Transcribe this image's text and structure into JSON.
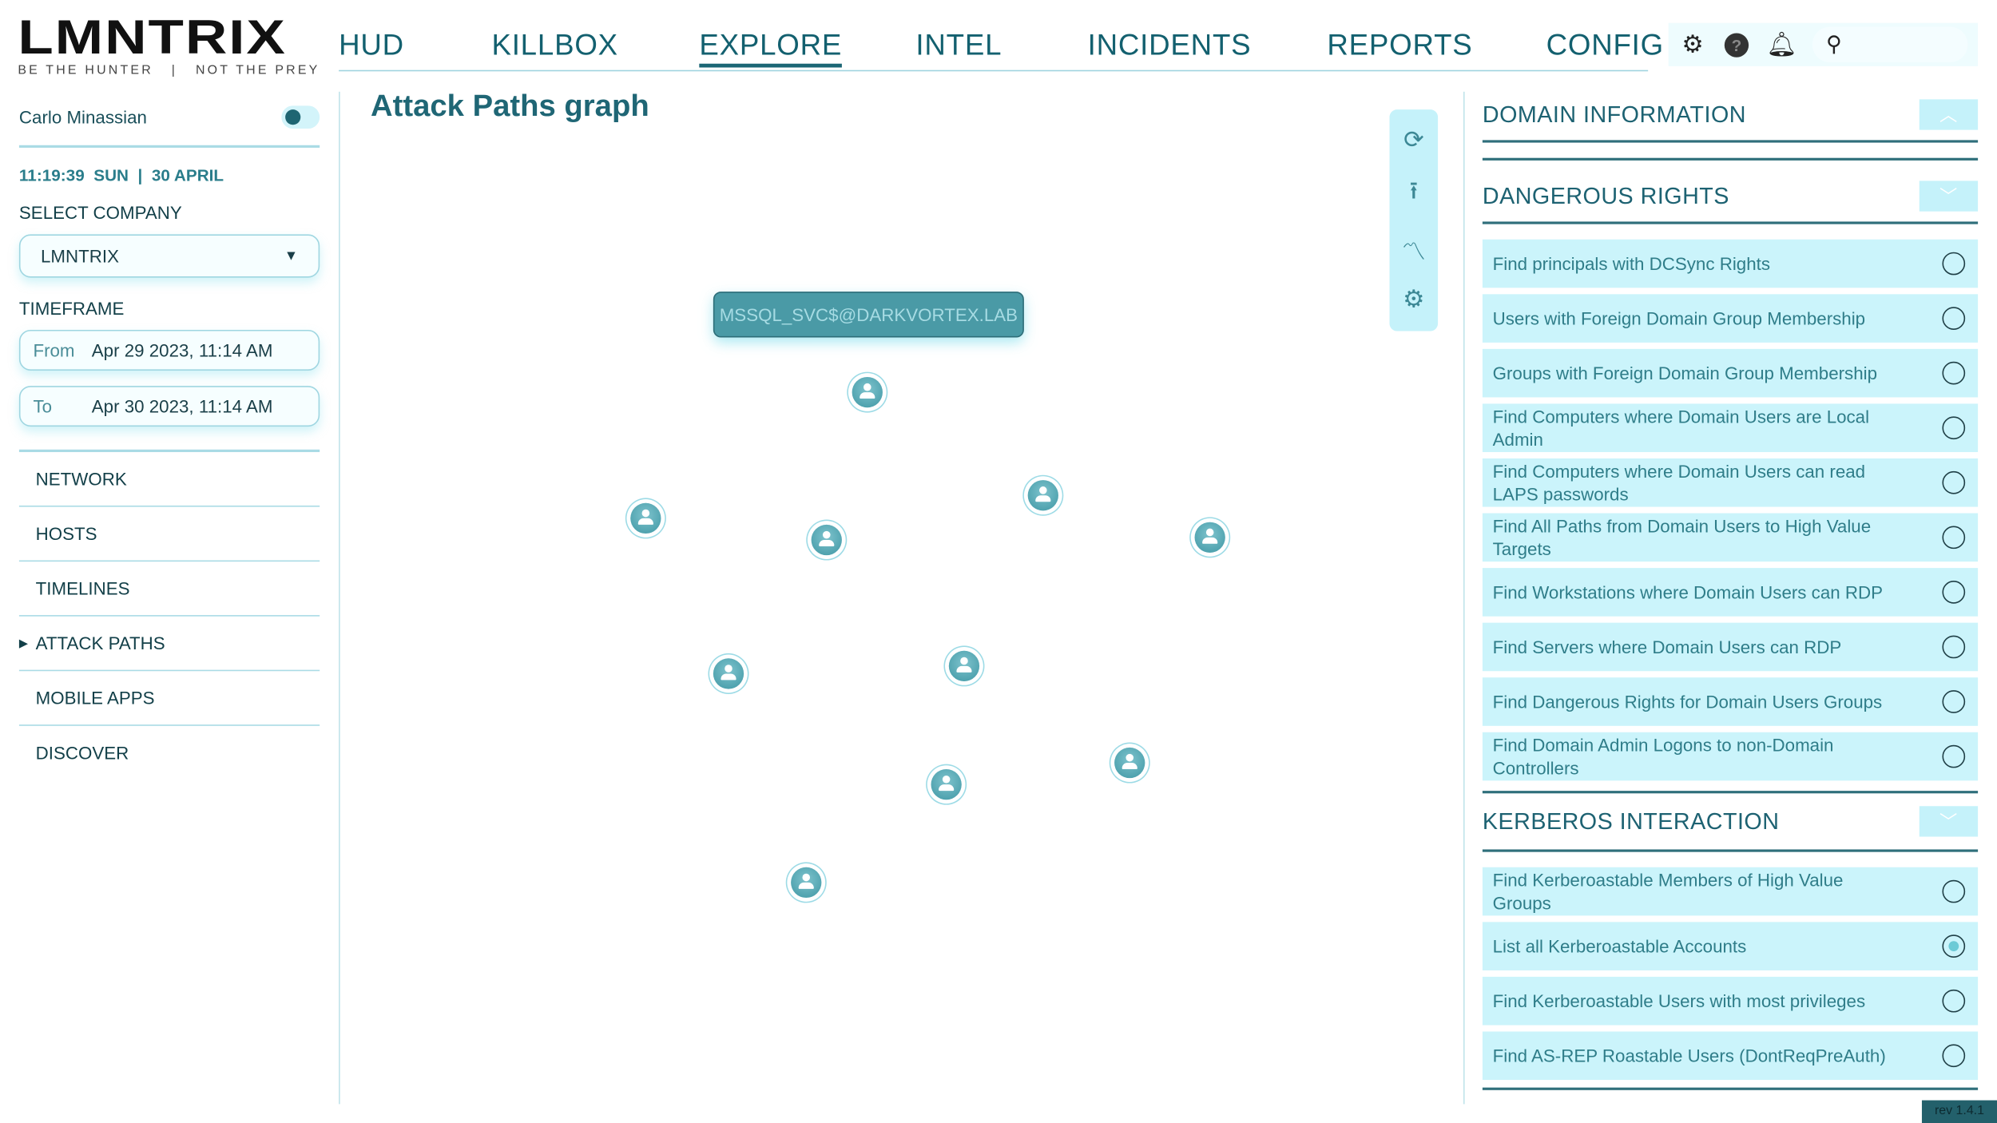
{
  "brand": {
    "name": "LMNTRIX",
    "tagline": "BE THE HUNTER   |   NOT THE PREY"
  },
  "nav": {
    "items": [
      "HUD",
      "KILLBOX",
      "EXPLORE",
      "INTEL",
      "INCIDENTS",
      "REPORTS",
      "CONFIG"
    ],
    "active": "EXPLORE"
  },
  "toolbar": {
    "icons": [
      "settings-icon",
      "help-icon",
      "bell-icon",
      "search-icon"
    ],
    "help_glyph": "?"
  },
  "sidebar": {
    "user": "Carlo Minassian",
    "clock": "11:19:39  SUN  |  30 APRIL",
    "select_company_label": "SELECT COMPANY",
    "company": "LMNTRIX",
    "timeframe_label": "TIMEFRAME",
    "from_label": "From",
    "from_value": "Apr 29 2023, 11:14 AM",
    "to_label": "To",
    "to_value": "Apr 30 2023, 11:14 AM",
    "menu": [
      "NETWORK",
      "HOSTS",
      "TIMELINES",
      "ATTACK PATHS",
      "MOBILE APPS",
      "DISCOVER"
    ],
    "active_menu": "ATTACK PATHS"
  },
  "main": {
    "title": "Attack Paths graph",
    "node_label": "MSSQL_SVC$@DARKVORTEX.LAB",
    "node_count": 10
  },
  "right": {
    "domain_info": "DOMAIN INFORMATION",
    "dangerous_rights": {
      "title": "DANGEROUS RIGHTS",
      "items": [
        "Find principals with DCSync Rights",
        "Users with Foreign Domain Group Membership",
        "Groups with Foreign Domain Group Membership",
        "Find Computers where Domain Users are Local Admin",
        "Find Computers where Domain Users can read LAPS passwords",
        "Find All Paths from Domain Users to High Value Targets",
        "Find Workstations where Domain Users can RDP",
        "Find Servers where Domain Users can RDP",
        "Find Dangerous Rights for Domain Users Groups",
        "Find Domain Admin Logons to non-Domain Controllers"
      ]
    },
    "kerberos": {
      "title": "KERBEROS INTERACTION",
      "items": [
        "Find Kerberoastable Members of High Value Groups",
        "List all Kerberoastable Accounts",
        "Find Kerberoastable Users with most privileges",
        "Find AS-REP Roastable Users (DontReqPreAuth)"
      ],
      "selected": "List all Kerberoastable Accounts"
    }
  },
  "footer": {
    "rev": "rev 1.4.1"
  },
  "colors": {
    "accent": "#1d6675",
    "panel": "#cbf4fb",
    "node": "#4a9aa6"
  }
}
